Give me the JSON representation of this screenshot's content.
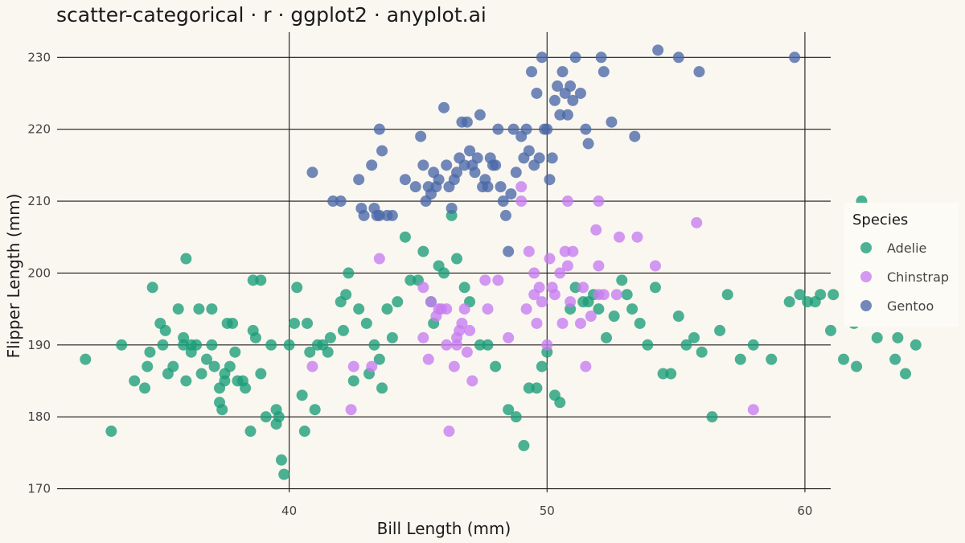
{
  "chart_data": {
    "type": "scatter",
    "title": "scatter-categorical · r · ggplot2 · anyplot.ai",
    "xlabel": "Bill Length (mm)",
    "ylabel": "Flipper Length (mm)",
    "xlim": [
      31.0,
      61.0
    ],
    "ylim": [
      169.5,
      233.5
    ],
    "x_ticks": [
      40,
      50,
      60
    ],
    "y_ticks": [
      170,
      180,
      190,
      200,
      210,
      220,
      230
    ],
    "grid": true,
    "legend": {
      "title": "Species",
      "position": "right"
    },
    "series": [
      {
        "name": "Adelie",
        "color": "#1a9e77",
        "points": [
          [
            32.1,
            188
          ],
          [
            33.1,
            178
          ],
          [
            33.5,
            190
          ],
          [
            34.0,
            185
          ],
          [
            34.4,
            184
          ],
          [
            34.5,
            187
          ],
          [
            34.6,
            189
          ],
          [
            34.7,
            198
          ],
          [
            35.0,
            193
          ],
          [
            35.1,
            190
          ],
          [
            35.2,
            192
          ],
          [
            35.3,
            186
          ],
          [
            35.5,
            187
          ],
          [
            35.7,
            195
          ],
          [
            35.9,
            190
          ],
          [
            35.9,
            191
          ],
          [
            36.0,
            185
          ],
          [
            36.0,
            202
          ],
          [
            36.2,
            189
          ],
          [
            36.2,
            190
          ],
          [
            36.4,
            190
          ],
          [
            36.5,
            195
          ],
          [
            36.6,
            186
          ],
          [
            36.8,
            188
          ],
          [
            37.0,
            195
          ],
          [
            37.0,
            190
          ],
          [
            37.1,
            187
          ],
          [
            37.3,
            184
          ],
          [
            37.3,
            182
          ],
          [
            37.4,
            181
          ],
          [
            37.5,
            186
          ],
          [
            37.5,
            185
          ],
          [
            37.6,
            193
          ],
          [
            37.7,
            187
          ],
          [
            37.8,
            193
          ],
          [
            37.9,
            189
          ],
          [
            38.0,
            185
          ],
          [
            38.2,
            185
          ],
          [
            38.3,
            184
          ],
          [
            38.5,
            178
          ],
          [
            38.6,
            199
          ],
          [
            38.6,
            192
          ],
          [
            38.7,
            191
          ],
          [
            38.9,
            199
          ],
          [
            38.9,
            186
          ],
          [
            39.1,
            180
          ],
          [
            39.3,
            190
          ],
          [
            39.5,
            179
          ],
          [
            39.5,
            181
          ],
          [
            39.6,
            180
          ],
          [
            39.7,
            174
          ],
          [
            39.8,
            172
          ],
          [
            40.0,
            190
          ],
          [
            40.2,
            193
          ],
          [
            40.3,
            198
          ],
          [
            40.5,
            183
          ],
          [
            40.6,
            178
          ],
          [
            40.7,
            193
          ],
          [
            40.8,
            189
          ],
          [
            41.0,
            181
          ],
          [
            41.1,
            190
          ],
          [
            41.3,
            190
          ],
          [
            41.5,
            189
          ],
          [
            41.6,
            191
          ],
          [
            42.0,
            196
          ],
          [
            42.1,
            192
          ],
          [
            42.2,
            197
          ],
          [
            42.3,
            200
          ],
          [
            42.5,
            185
          ],
          [
            42.7,
            195
          ],
          [
            43.0,
            193
          ],
          [
            43.1,
            186
          ],
          [
            43.3,
            190
          ],
          [
            43.5,
            188
          ],
          [
            43.6,
            184
          ],
          [
            43.8,
            195
          ],
          [
            44.0,
            191
          ],
          [
            44.2,
            196
          ],
          [
            44.5,
            205
          ],
          [
            44.7,
            199
          ],
          [
            45.0,
            199
          ],
          [
            45.2,
            203
          ],
          [
            45.5,
            196
          ],
          [
            45.6,
            193
          ],
          [
            45.8,
            201
          ],
          [
            46.0,
            200
          ],
          [
            46.3,
            208
          ],
          [
            46.5,
            202
          ],
          [
            46.8,
            198
          ],
          [
            47.0,
            196
          ],
          [
            47.4,
            190
          ],
          [
            47.7,
            190
          ],
          [
            48.0,
            187
          ],
          [
            48.5,
            181
          ],
          [
            48.8,
            180
          ],
          [
            49.1,
            176
          ],
          [
            49.3,
            184
          ],
          [
            49.6,
            184
          ],
          [
            49.8,
            187
          ],
          [
            50.0,
            189
          ],
          [
            50.3,
            183
          ],
          [
            50.5,
            182
          ],
          [
            50.9,
            195
          ],
          [
            51.1,
            198
          ],
          [
            51.4,
            196
          ],
          [
            51.6,
            196
          ],
          [
            51.8,
            197
          ],
          [
            52.0,
            195
          ],
          [
            52.3,
            191
          ],
          [
            52.6,
            194
          ],
          [
            52.9,
            199
          ],
          [
            53.1,
            197
          ],
          [
            53.3,
            195
          ],
          [
            53.6,
            193
          ],
          [
            53.9,
            190
          ],
          [
            54.2,
            198
          ],
          [
            54.5,
            186
          ],
          [
            54.8,
            186
          ],
          [
            55.1,
            194
          ],
          [
            55.4,
            190
          ],
          [
            55.7,
            191
          ],
          [
            56.0,
            189
          ],
          [
            56.4,
            180
          ],
          [
            56.7,
            192
          ],
          [
            57.0,
            197
          ],
          [
            57.5,
            188
          ],
          [
            58.0,
            190
          ],
          [
            58.7,
            188
          ],
          [
            59.4,
            196
          ],
          [
            59.8,
            197
          ],
          [
            60.1,
            196
          ],
          [
            60.4,
            196
          ],
          [
            60.6,
            197
          ],
          [
            61.0,
            192
          ],
          [
            61.1,
            197
          ],
          [
            61.5,
            188
          ],
          [
            61.8,
            195
          ],
          [
            61.9,
            193
          ],
          [
            62.0,
            187
          ],
          [
            62.2,
            210
          ],
          [
            62.5,
            196
          ],
          [
            62.8,
            191
          ],
          [
            63.0,
            194
          ],
          [
            63.3,
            197
          ],
          [
            63.5,
            188
          ],
          [
            63.6,
            191
          ],
          [
            63.9,
            186
          ],
          [
            64.1,
            194
          ],
          [
            64.3,
            190
          ]
        ]
      },
      {
        "name": "Chinstrap",
        "color": "#c77cf0",
        "points": [
          [
            40.9,
            187
          ],
          [
            42.4,
            181
          ],
          [
            42.5,
            187
          ],
          [
            43.2,
            187
          ],
          [
            43.5,
            202
          ],
          [
            45.2,
            191
          ],
          [
            45.2,
            198
          ],
          [
            45.4,
            188
          ],
          [
            45.5,
            196
          ],
          [
            45.7,
            194
          ],
          [
            45.8,
            195
          ],
          [
            45.9,
            195
          ],
          [
            46.1,
            190
          ],
          [
            46.1,
            195
          ],
          [
            46.2,
            178
          ],
          [
            46.4,
            187
          ],
          [
            46.5,
            191
          ],
          [
            46.5,
            190
          ],
          [
            46.6,
            192
          ],
          [
            46.7,
            193
          ],
          [
            46.8,
            195
          ],
          [
            46.9,
            189
          ],
          [
            47.0,
            192
          ],
          [
            47.1,
            185
          ],
          [
            47.6,
            199
          ],
          [
            47.7,
            195
          ],
          [
            48.1,
            199
          ],
          [
            48.5,
            191
          ],
          [
            49.0,
            212
          ],
          [
            49.2,
            195
          ],
          [
            49.3,
            203
          ],
          [
            49.5,
            200
          ],
          [
            49.6,
            193
          ],
          [
            49.7,
            198
          ],
          [
            49.8,
            196
          ],
          [
            50.0,
            190
          ],
          [
            50.1,
            202
          ],
          [
            50.2,
            198
          ],
          [
            50.3,
            197
          ],
          [
            50.5,
            200
          ],
          [
            50.6,
            193
          ],
          [
            50.7,
            203
          ],
          [
            50.8,
            201
          ],
          [
            50.9,
            196
          ],
          [
            51.0,
            203
          ],
          [
            51.3,
            193
          ],
          [
            51.4,
            198
          ],
          [
            51.5,
            187
          ],
          [
            51.7,
            194
          ],
          [
            51.9,
            206
          ],
          [
            52.0,
            197
          ],
          [
            52.0,
            201
          ],
          [
            52.2,
            197
          ],
          [
            52.7,
            197
          ],
          [
            52.8,
            205
          ],
          [
            53.5,
            205
          ],
          [
            54.2,
            201
          ],
          [
            55.8,
            207
          ],
          [
            58.0,
            181
          ],
          [
            49.0,
            210
          ],
          [
            50.8,
            210
          ],
          [
            52.0,
            210
          ],
          [
            49.5,
            197
          ]
        ]
      },
      {
        "name": "Gentoo",
        "color": "#4a68a8",
        "points": [
          [
            40.9,
            214
          ],
          [
            41.7,
            210
          ],
          [
            42.0,
            210
          ],
          [
            42.7,
            213
          ],
          [
            42.8,
            209
          ],
          [
            42.9,
            208
          ],
          [
            43.2,
            215
          ],
          [
            43.3,
            209
          ],
          [
            43.4,
            208
          ],
          [
            43.5,
            220
          ],
          [
            43.5,
            208
          ],
          [
            43.6,
            217
          ],
          [
            43.8,
            208
          ],
          [
            44.0,
            208
          ],
          [
            44.5,
            213
          ],
          [
            44.9,
            212
          ],
          [
            45.1,
            219
          ],
          [
            45.2,
            215
          ],
          [
            45.3,
            210
          ],
          [
            45.4,
            212
          ],
          [
            45.5,
            211
          ],
          [
            45.6,
            214
          ],
          [
            45.7,
            212
          ],
          [
            45.8,
            213
          ],
          [
            46.0,
            223
          ],
          [
            46.1,
            215
          ],
          [
            46.2,
            212
          ],
          [
            46.3,
            209
          ],
          [
            46.4,
            213
          ],
          [
            46.5,
            214
          ],
          [
            46.6,
            216
          ],
          [
            46.7,
            221
          ],
          [
            46.8,
            215
          ],
          [
            46.9,
            221
          ],
          [
            47.0,
            217
          ],
          [
            47.1,
            215
          ],
          [
            47.2,
            214
          ],
          [
            47.3,
            216
          ],
          [
            47.4,
            222
          ],
          [
            47.5,
            212
          ],
          [
            47.6,
            213
          ],
          [
            47.7,
            212
          ],
          [
            47.8,
            216
          ],
          [
            47.9,
            215
          ],
          [
            48.0,
            215
          ],
          [
            48.1,
            220
          ],
          [
            48.2,
            212
          ],
          [
            48.3,
            210
          ],
          [
            48.4,
            208
          ],
          [
            48.5,
            203
          ],
          [
            48.6,
            211
          ],
          [
            48.7,
            220
          ],
          [
            48.8,
            214
          ],
          [
            49.0,
            219
          ],
          [
            49.1,
            216
          ],
          [
            49.2,
            220
          ],
          [
            49.3,
            217
          ],
          [
            49.4,
            228
          ],
          [
            49.5,
            215
          ],
          [
            49.6,
            225
          ],
          [
            49.7,
            216
          ],
          [
            49.8,
            230
          ],
          [
            49.9,
            220
          ],
          [
            50.0,
            220
          ],
          [
            50.1,
            213
          ],
          [
            50.2,
            216
          ],
          [
            50.3,
            224
          ],
          [
            50.4,
            226
          ],
          [
            50.5,
            222
          ],
          [
            50.6,
            228
          ],
          [
            50.7,
            225
          ],
          [
            50.8,
            222
          ],
          [
            50.9,
            226
          ],
          [
            51.0,
            224
          ],
          [
            51.1,
            230
          ],
          [
            51.3,
            225
          ],
          [
            51.5,
            220
          ],
          [
            51.6,
            218
          ],
          [
            52.1,
            230
          ],
          [
            52.2,
            228
          ],
          [
            52.5,
            221
          ],
          [
            53.4,
            219
          ],
          [
            54.3,
            231
          ],
          [
            55.1,
            230
          ],
          [
            55.9,
            228
          ],
          [
            59.6,
            230
          ]
        ]
      }
    ]
  }
}
